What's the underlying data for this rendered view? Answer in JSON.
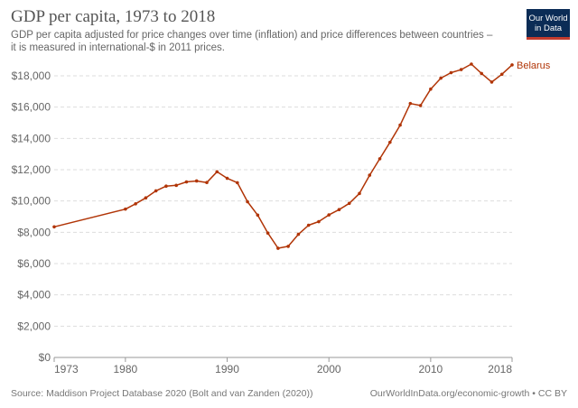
{
  "title": "GDP per capita, 1973 to 2018",
  "subtitle": "GDP per capita adjusted for price changes over time (inflation) and price differences between countries – it is measured in international-$ in 2011 prices.",
  "logo": {
    "line1": "Our World",
    "line2": "in Data",
    "bg_color": "#0b2c56",
    "accent_color": "#c23b2e"
  },
  "footer": {
    "source": "Source: Maddison Project Database 2020 (Bolt and van Zanden (2020))",
    "license": "OurWorldInData.org/economic-growth • CC BY"
  },
  "chart_data": {
    "type": "line",
    "title": "GDP per capita, 1973 to 2018",
    "xlabel": "",
    "ylabel": "",
    "xlim": [
      1973,
      2018
    ],
    "ylim": [
      0,
      18000
    ],
    "x_ticks": [
      1973,
      1980,
      1990,
      2000,
      2010,
      2018
    ],
    "x_tick_labels": [
      "1973",
      "1980",
      "1990",
      "2000",
      "2010",
      "2018"
    ],
    "y_ticks": [
      0,
      2000,
      4000,
      6000,
      8000,
      10000,
      12000,
      14000,
      16000,
      18000
    ],
    "y_tick_labels": [
      "$0",
      "$2,000",
      "$4,000",
      "$6,000",
      "$8,000",
      "$10,000",
      "$12,000",
      "$14,000",
      "$16,000",
      "$18,000"
    ],
    "grid": true,
    "series": [
      {
        "name": "Belarus",
        "color": "#b13507",
        "x": [
          1973,
          1980,
          1981,
          1982,
          1983,
          1984,
          1985,
          1986,
          1987,
          1988,
          1989,
          1990,
          1991,
          1992,
          1993,
          1994,
          1995,
          1996,
          1997,
          1998,
          1999,
          2000,
          2001,
          2002,
          2003,
          2004,
          2005,
          2006,
          2007,
          2008,
          2009,
          2010,
          2011,
          2012,
          2013,
          2014,
          2015,
          2016,
          2017,
          2018
        ],
        "values": [
          8350,
          9480,
          9820,
          10200,
          10650,
          10950,
          11000,
          11220,
          11280,
          11180,
          11870,
          11450,
          11170,
          9950,
          9100,
          7950,
          6980,
          7100,
          7870,
          8450,
          8680,
          9110,
          9450,
          9850,
          10480,
          11650,
          12700,
          13750,
          14850,
          16230,
          16100,
          17150,
          17850,
          18200,
          18400,
          18750,
          18150,
          17600,
          18100,
          18700
        ]
      }
    ]
  }
}
